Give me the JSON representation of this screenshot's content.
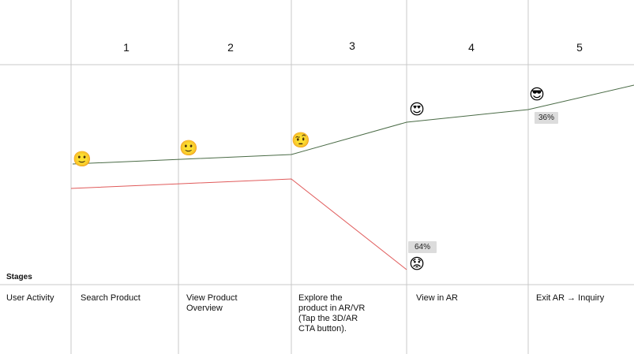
{
  "stages": {
    "row_label": "Stages",
    "numbers": [
      "1",
      "2",
      "3",
      "4",
      "5"
    ]
  },
  "user_activity": {
    "row_label": "User Activity",
    "items": [
      "Search Product",
      "View Product\nOverview",
      "Explore the\nproduct in AR/VR\n(Tap the 3D/AR\nCTA button).",
      "View in AR",
      "Exit AR → Inquiry"
    ]
  },
  "emotions": {
    "faces": [
      {
        "stage": "1",
        "name": "slightly-smiling-face",
        "glyph": "🙂"
      },
      {
        "stage": "2",
        "name": "slightly-smiling-face",
        "glyph": "🙂"
      },
      {
        "stage": "3",
        "name": "face-with-raised-eyebrow",
        "glyph": "🤨"
      },
      {
        "stage": "4",
        "name": "smiling-face-with-heart-eyes",
        "glyph": "😍"
      },
      {
        "stage": "5",
        "name": "smiling-face-with-sunglasses",
        "glyph": "😎"
      },
      {
        "stage": "4",
        "name": "worried-face",
        "glyph": "😟"
      }
    ],
    "badges": [
      {
        "stage": "5",
        "text": "36%"
      },
      {
        "stage": "4",
        "text": "64%"
      }
    ]
  },
  "colors": {
    "positive_line": "#4a6b46",
    "negative_line": "#e05a5a",
    "grid": "#c8c8c8",
    "badge": "#dcdcdc"
  }
}
